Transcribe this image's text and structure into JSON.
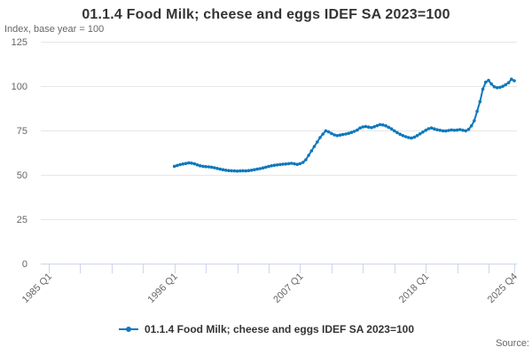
{
  "title": "01.1.4 Food Milk; cheese and eggs IDEF SA 2023=100",
  "subtitle": "Index, base year = 100",
  "source": {
    "label": "Source:"
  },
  "legend": {
    "label": "01.1.4 Food Milk; cheese and eggs IDEF SA 2023=100"
  },
  "colors": {
    "line": "#0e78bd",
    "grid": "#e6e6e6",
    "axis": "#ccd6eb",
    "tick_label": "#666666",
    "title_text": "#333333"
  },
  "chart_data": {
    "type": "line",
    "title": "01.1.4 Food Milk; cheese and eggs IDEF SA 2023=100",
    "subtitle": "Index, base year = 100",
    "ylabel": "Index, base year = 100",
    "ylim": [
      0,
      125
    ],
    "yticks": [
      0,
      25,
      50,
      75,
      100,
      125
    ],
    "grid": "horizontal",
    "legend_position": "bottom",
    "x_unit": "quarter",
    "x_axis_range": [
      "1985 Q1",
      "2025 Q4"
    ],
    "xtick_interval_quarters": 11,
    "xtick_labels": [
      {
        "label": "1985 Q1",
        "q": 0
      },
      {
        "label": "1996 Q1",
        "q": 44
      },
      {
        "label": "2007 Q1",
        "q": 88
      },
      {
        "label": "2018 Q1",
        "q": 132
      },
      {
        "label": "2025 Q4",
        "q": 163
      }
    ],
    "series": [
      {
        "name": "01.1.4 Food Milk; cheese and eggs IDEF SA 2023=100",
        "start": "1996 Q1",
        "start_q": 44,
        "values": [
          54.8,
          55.3,
          55.8,
          56.1,
          56.4,
          56.7,
          56.6,
          56.2,
          55.6,
          55.1,
          54.8,
          54.6,
          54.5,
          54.3,
          54.0,
          53.6,
          53.2,
          52.9,
          52.6,
          52.4,
          52.3,
          52.2,
          52.1,
          52.2,
          52.3,
          52.2,
          52.4,
          52.6,
          52.9,
          53.2,
          53.5,
          53.9,
          54.3,
          54.7,
          55.1,
          55.4,
          55.6,
          55.8,
          56.0,
          56.1,
          56.3,
          56.5,
          56.2,
          55.9,
          56.3,
          57.0,
          58.5,
          61.0,
          63.5,
          66.0,
          68.5,
          71.0,
          73.0,
          74.8,
          74.2,
          73.3,
          72.5,
          72.1,
          72.4,
          72.7,
          73.0,
          73.4,
          73.9,
          74.5,
          75.2,
          76.4,
          77.0,
          77.2,
          76.9,
          76.6,
          77.1,
          77.7,
          78.3,
          78.1,
          77.6,
          76.8,
          75.9,
          74.8,
          73.8,
          72.9,
          72.1,
          71.5,
          71.0,
          70.7,
          71.2,
          72.1,
          73.1,
          74.1,
          75.1,
          76.0,
          76.4,
          75.9,
          75.4,
          75.1,
          74.8,
          74.7,
          75.0,
          75.3,
          75.1,
          75.2,
          75.5,
          75.1,
          74.8,
          75.6,
          77.6,
          80.5,
          85.8,
          91.2,
          98.3,
          102.2,
          103.2,
          101.2,
          99.6,
          99.1,
          99.3,
          99.9,
          100.8,
          101.9,
          103.9,
          103.0
        ]
      }
    ]
  }
}
